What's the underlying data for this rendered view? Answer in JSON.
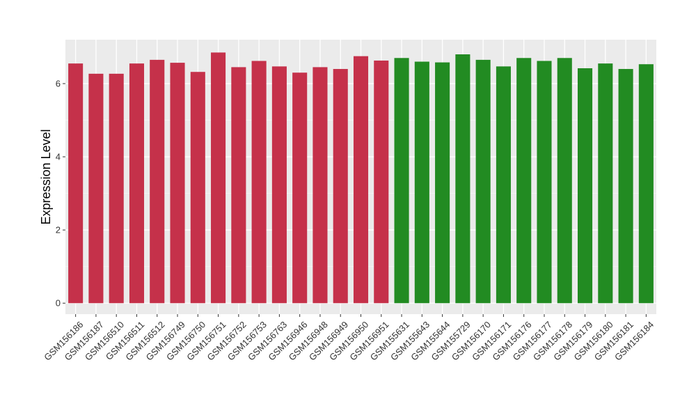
{
  "chart_data": {
    "type": "bar",
    "title": "",
    "xlabel": "",
    "ylabel": "Expression Level",
    "ylim": [
      -0.3,
      7.2
    ],
    "yticks": [
      0,
      2,
      4,
      6
    ],
    "grid": true,
    "legend": "none",
    "colors": {
      "group_red": "#C5314A",
      "group_green": "#228B22",
      "panel_bg": "#EBEBEB",
      "grid_major": "#FFFFFF",
      "grid_minor": "#F5F5F5"
    },
    "categories": [
      "GSM156186",
      "GSM156187",
      "GSM156510",
      "GSM156511",
      "GSM156512",
      "GSM156749",
      "GSM156750",
      "GSM156751",
      "GSM156752",
      "GSM156753",
      "GSM156763",
      "GSM156946",
      "GSM156948",
      "GSM156949",
      "GSM156950",
      "GSM156951",
      "GSM155631",
      "GSM155643",
      "GSM155644",
      "GSM155729",
      "GSM156170",
      "GSM156171",
      "GSM156176",
      "GSM156177",
      "GSM156178",
      "GSM156179",
      "GSM156180",
      "GSM156181",
      "GSM156184"
    ],
    "values": [
      6.55,
      6.27,
      6.27,
      6.55,
      6.65,
      6.57,
      6.32,
      6.85,
      6.45,
      6.62,
      6.47,
      6.3,
      6.45,
      6.4,
      6.75,
      6.63,
      6.7,
      6.6,
      6.58,
      6.8,
      6.65,
      6.47,
      6.7,
      6.62,
      6.7,
      6.42,
      6.55,
      6.4,
      6.53
    ],
    "groups": [
      "red",
      "red",
      "red",
      "red",
      "red",
      "red",
      "red",
      "red",
      "red",
      "red",
      "red",
      "red",
      "red",
      "red",
      "red",
      "red",
      "green",
      "green",
      "green",
      "green",
      "green",
      "green",
      "green",
      "green",
      "green",
      "green",
      "green",
      "green",
      "green"
    ]
  }
}
